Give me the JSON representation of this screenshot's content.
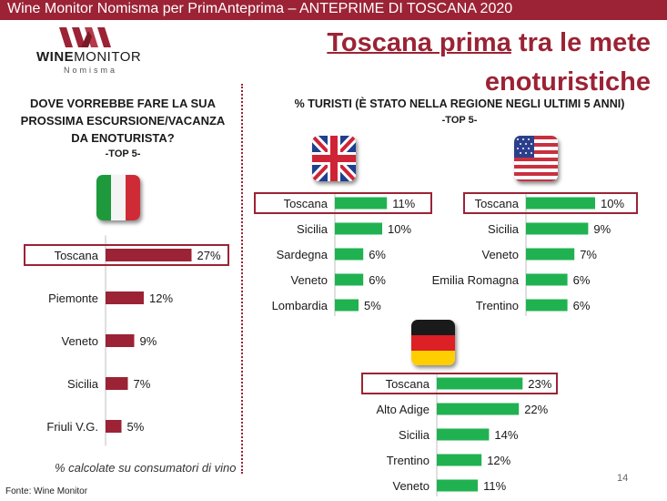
{
  "header": {
    "bar_text": "Wine Monitor Nomisma per PrimAnteprima – ANTEPRIME DI TOSCANA 2020"
  },
  "logo": {
    "word_bold": "WINE",
    "word_rest": "MONITOR",
    "sub": "Nomisma"
  },
  "title": {
    "highlight": "Toscana prima",
    "rest_line1": " tra le mete",
    "line2": "enoturistiche"
  },
  "left_panel": {
    "heading_lines": [
      "DOVE VORREBBE FARE LA SUA",
      "PROSSIMA ESCURSIONE/VACANZA",
      "DA ENOTURISTA?"
    ],
    "subheading": "-TOP 5-"
  },
  "right_panel": {
    "heading": "% TURISTI (È STATO NELLA REGIONE NEGLI ULTIMI 5 ANNI)",
    "subheading": "-TOP 5-"
  },
  "footnote": "% calcolate su consumatori di vino",
  "source": "Fonte: Wine Monitor",
  "page_number": "14",
  "colors": {
    "accent": "#9b2335",
    "green_bar": "#20b251",
    "header_bar": "#9b2335"
  },
  "chart_data": [
    {
      "type": "bar",
      "flag": "italy-flag",
      "categories": [
        "Toscana",
        "Piemonte",
        "Veneto",
        "Sicilia",
        "Friuli V.G."
      ],
      "values": [
        27,
        12,
        9,
        7,
        5
      ],
      "labels": [
        "27%",
        "12%",
        "9%",
        "7%",
        "5%"
      ],
      "highlight": "Toscana",
      "color": "#9b2335"
    },
    {
      "type": "bar",
      "flag": "uk-flag",
      "categories": [
        "Toscana",
        "Sicilia",
        "Sardegna",
        "Veneto",
        "Lombardia"
      ],
      "values": [
        11,
        10,
        6,
        6,
        5
      ],
      "labels": [
        "11%",
        "10%",
        "6%",
        "6%",
        "5%"
      ],
      "highlight": "Toscana",
      "color": "#20b251"
    },
    {
      "type": "bar",
      "flag": "usa-flag",
      "categories": [
        "Toscana",
        "Sicilia",
        "Veneto",
        "Emilia Romagna",
        "Trentino"
      ],
      "values": [
        10,
        9,
        7,
        6,
        6
      ],
      "labels": [
        "10%",
        "9%",
        "7%",
        "6%",
        "6%"
      ],
      "highlight": "Toscana",
      "color": "#20b251"
    },
    {
      "type": "bar",
      "flag": "germany-flag",
      "categories": [
        "Toscana",
        "Alto Adige",
        "Sicilia",
        "Trentino",
        "Veneto"
      ],
      "values": [
        23,
        22,
        14,
        12,
        11
      ],
      "labels": [
        "23%",
        "22%",
        "14%",
        "12%",
        "11%"
      ],
      "highlight": "Toscana",
      "color": "#20b251"
    }
  ]
}
